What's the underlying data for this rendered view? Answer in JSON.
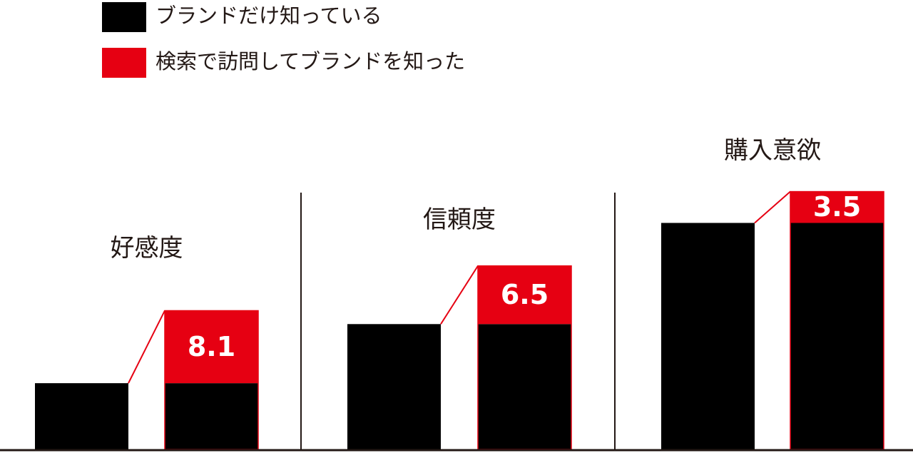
{
  "chart_data": {
    "type": "stacked-step-bar",
    "categories": [
      "好感度",
      "信頼度",
      "購入意欲"
    ],
    "series": [
      {
        "name": "ブランドだけ知っている",
        "color": "#000000",
        "values": [
          7.4,
          14.0,
          25.3
        ]
      },
      {
        "name": "検索で訪問してブランドを知った",
        "color": "#e60012",
        "values": [
          8.1,
          6.5,
          3.5
        ]
      }
    ],
    "ylim": [
      0,
      50
    ]
  }
}
